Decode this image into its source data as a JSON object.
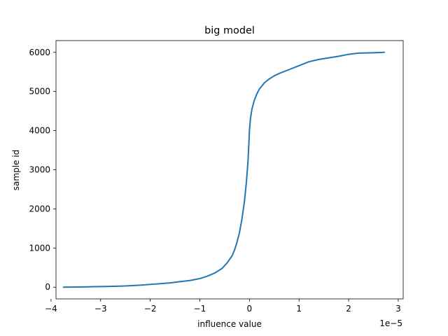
{
  "chart_data": {
    "type": "line",
    "title": "big model",
    "xlabel": "influence value",
    "ylabel": "sample id",
    "x_offset_label": "1e−5",
    "x_scale": 1e-05,
    "xlim": [
      -3.9,
      3.1
    ],
    "ylim": [
      -300,
      6300
    ],
    "grid": false,
    "x_ticks": [
      -4,
      -3,
      -2,
      -1,
      0,
      1,
      2,
      3
    ],
    "x_tick_labels": [
      "−4",
      "−3",
      "−2",
      "−1",
      "0",
      "1",
      "2",
      "3"
    ],
    "y_ticks": [
      0,
      1000,
      2000,
      3000,
      4000,
      5000,
      6000
    ],
    "y_tick_labels": [
      "0",
      "1000",
      "2000",
      "3000",
      "4000",
      "5000",
      "6000"
    ],
    "series": [
      {
        "color": "#1f77b4",
        "x": [
          -3.75,
          -3.2,
          -2.8,
          -2.5,
          -2.2,
          -2.0,
          -1.8,
          -1.6,
          -1.4,
          -1.2,
          -1.0,
          -0.85,
          -0.7,
          -0.55,
          -0.45,
          -0.35,
          -0.3,
          -0.25,
          -0.2,
          -0.15,
          -0.1,
          -0.06,
          -0.03,
          -0.01,
          0.0,
          0.02,
          0.05,
          0.1,
          0.15,
          0.2,
          0.3,
          0.4,
          0.5,
          0.6,
          0.8,
          1.0,
          1.2,
          1.4,
          1.6,
          1.8,
          2.0,
          2.2,
          2.5,
          2.72
        ],
        "y": [
          0,
          10,
          20,
          30,
          50,
          70,
          90,
          110,
          140,
          170,
          220,
          280,
          360,
          480,
          620,
          800,
          950,
          1150,
          1400,
          1750,
          2200,
          2700,
          3200,
          3700,
          4000,
          4300,
          4550,
          4780,
          4940,
          5060,
          5220,
          5320,
          5400,
          5460,
          5560,
          5660,
          5760,
          5820,
          5860,
          5900,
          5950,
          5980,
          5990,
          6000
        ]
      }
    ]
  }
}
